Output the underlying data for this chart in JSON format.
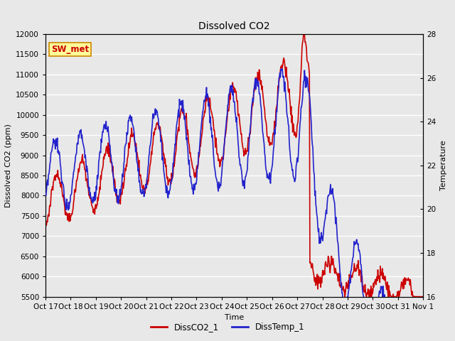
{
  "title": "Dissolved CO2",
  "xlabel": "Time",
  "ylabel_left": "Dissolved CO2 (ppm)",
  "ylabel_right": "Temperature",
  "legend_label": "SW_met",
  "series1_label": "DissCO2_1",
  "series2_label": "DissTemp_1",
  "series1_color": "#cc0000",
  "series2_color": "#2222cc",
  "ylim_left": [
    5500,
    12000
  ],
  "ylim_right": [
    16,
    28
  ],
  "yticks_left": [
    5500,
    6000,
    6500,
    7000,
    7500,
    8000,
    8500,
    9000,
    9500,
    10000,
    10500,
    11000,
    11500,
    12000
  ],
  "yticks_right": [
    16,
    18,
    20,
    22,
    24,
    26,
    28
  ],
  "background_color": "#e8e8e8",
  "axes_bg_color": "#e8e8e8",
  "grid_color": "#ffffff",
  "annotation_bg": "#ffff99",
  "annotation_border": "#cc8800",
  "annotation_text_color": "#cc0000",
  "tick_labels": [
    "Oct 17",
    "Oct 18",
    "Oct 19",
    "Oct 20",
    "Oct 21",
    "Oct 22",
    "Oct 23",
    "Oct 24",
    "Oct 25",
    "Oct 26",
    "Oct 27",
    "Oct 28",
    "Oct 29",
    "Oct 30",
    "Oct 31",
    "Nov 1"
  ],
  "linewidth": 1.2,
  "title_fontsize": 10,
  "label_fontsize": 8,
  "tick_fontsize": 7.5
}
